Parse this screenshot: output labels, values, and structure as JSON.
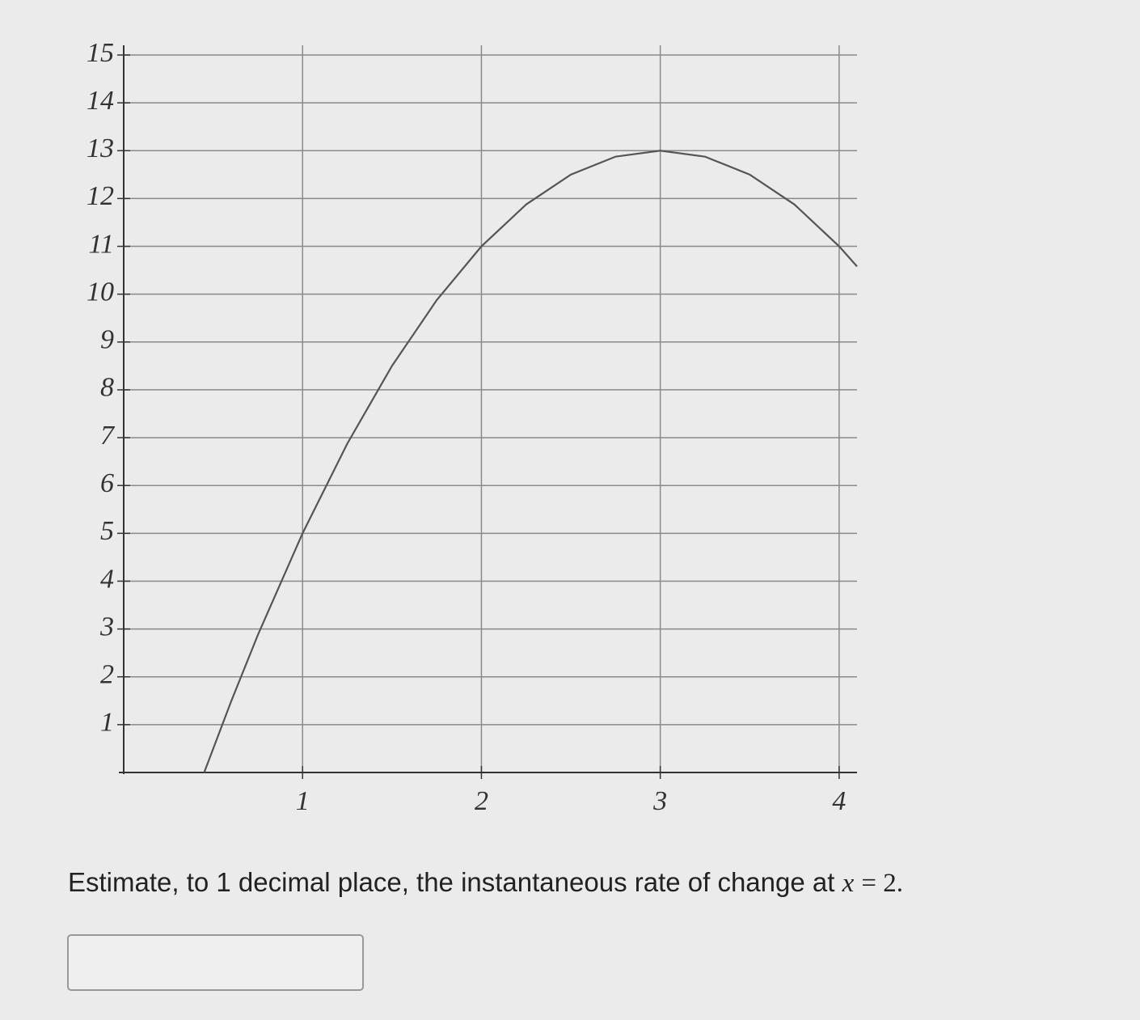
{
  "chart_data": {
    "type": "line",
    "x": [
      0.45,
      0.6,
      0.75,
      1,
      1.25,
      1.5,
      1.75,
      2,
      2.25,
      2.5,
      2.75,
      3,
      3.25,
      3.5,
      3.75,
      4,
      4.1
    ],
    "series": [
      {
        "color": "#555555",
        "values": [
          0,
          1.48,
          2.875,
          5,
          6.875,
          8.5,
          9.875,
          11,
          11.875,
          12.5,
          12.875,
          13,
          12.875,
          12.5,
          11.875,
          11,
          10.58
        ]
      }
    ],
    "xlim": [
      0,
      4.1
    ],
    "ylim": [
      0,
      15
    ],
    "xticks": [
      1,
      2,
      3,
      4
    ],
    "yticks": [
      1,
      2,
      3,
      4,
      5,
      6,
      7,
      8,
      9,
      10,
      11,
      12,
      13,
      14,
      15
    ],
    "grid": true
  },
  "question": {
    "text": "Estimate, to 1 decimal place, the instantaneous rate of change at",
    "math_var": "x",
    "math_rest": "= 2."
  }
}
